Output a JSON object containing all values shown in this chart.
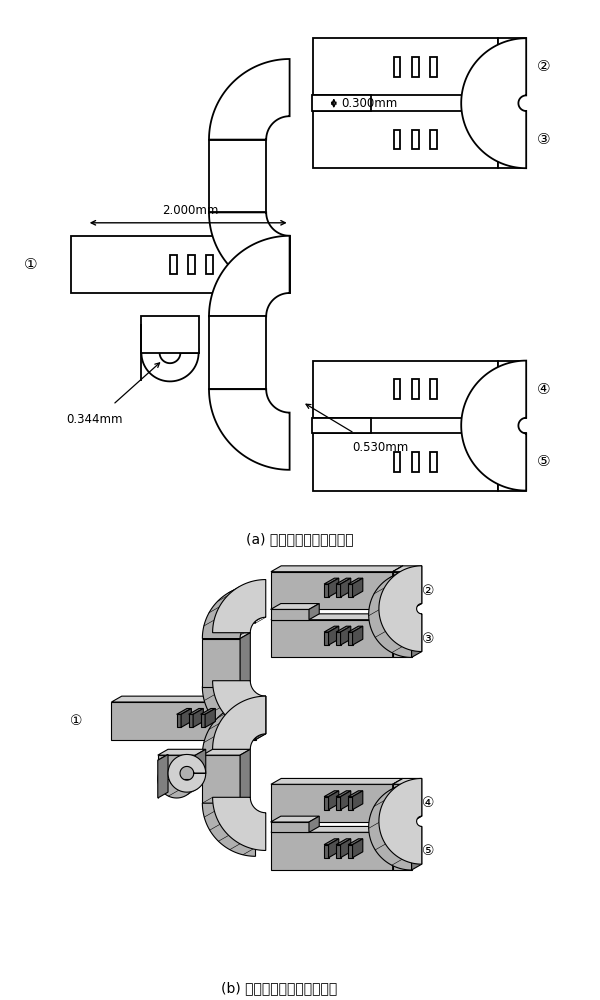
{
  "bg_color": "#ffffff",
  "line_color": "#000000",
  "line_width": 1.3,
  "fill_color": "#ffffff",
  "panel_a_caption": "(a) 四路功分器俯视平面图",
  "panel_b_caption": "(b) 四路功分器三维结构视图",
  "label_1": "①",
  "label_2": "②",
  "label_3": "③",
  "label_4": "④",
  "label_5": "⑤",
  "dim_2000": "2.000mm",
  "dim_0300": "0.300mm",
  "dim_0344": "0.344mm",
  "dim_0530": "0.530mm",
  "gray_light": "#d0d0d0",
  "gray_dark": "#808080",
  "gray_mid": "#b0b0b0",
  "gray_slot": "#606060"
}
